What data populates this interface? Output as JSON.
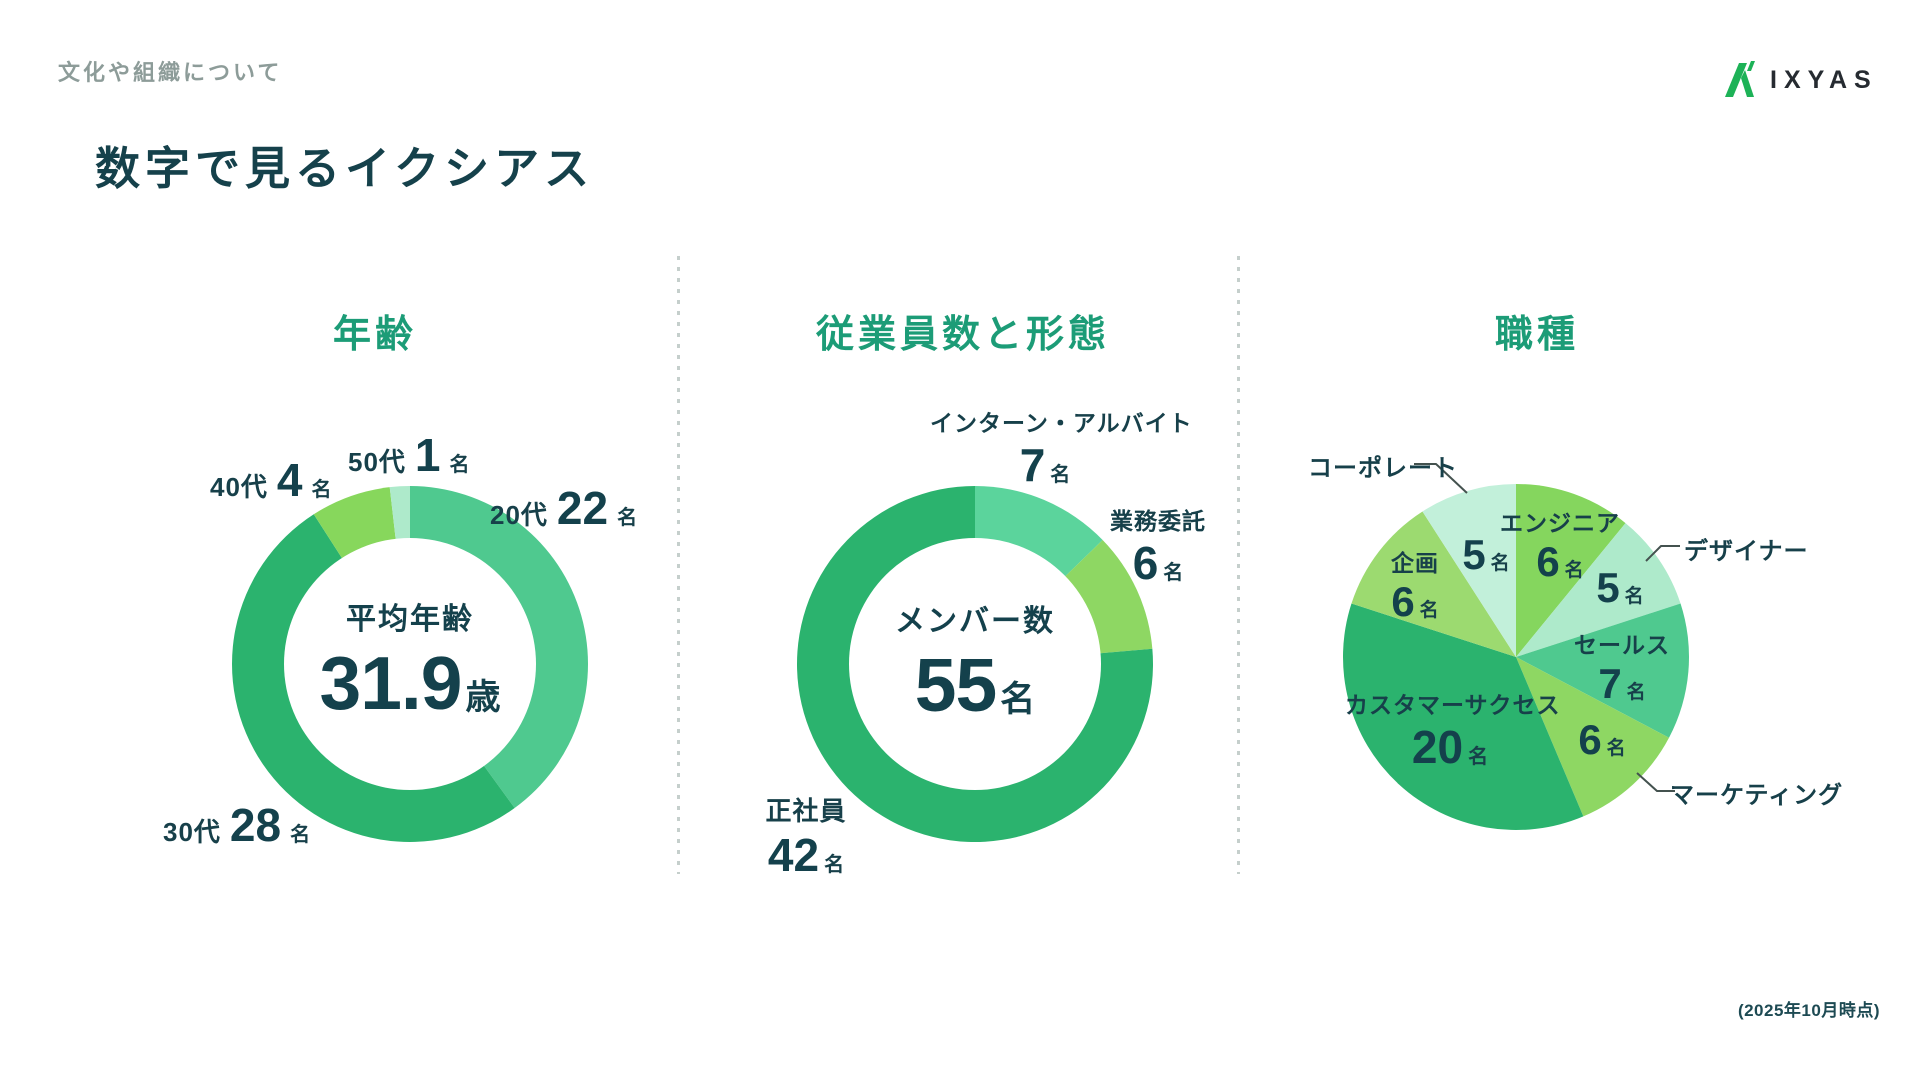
{
  "header": {
    "eyebrow": "文化や組織について",
    "title": "数字で見るイクシアス",
    "logo_text": "IXYAS"
  },
  "footer": {
    "note": "(2025年10月時点)"
  },
  "colors": {
    "accent_title_teal": "#1c9c77",
    "text_dark_teal": "#14414c",
    "eyebrow_gray": "#8d9c99",
    "logo_green": "#1db257",
    "divider_gray": "#c5cfcc"
  },
  "chart_data": [
    {
      "type": "donut",
      "title": "年齢",
      "legend_position": "around-slices",
      "center": {
        "label": "平均年齢",
        "value": "31.9",
        "unit": "歳"
      },
      "slices": [
        {
          "label": "20代",
          "value": 22,
          "unit": "名",
          "color": "#4fc98f"
        },
        {
          "label": "30代",
          "value": 28,
          "unit": "名",
          "color": "#2bb36e"
        },
        {
          "label": "40代",
          "value": 4,
          "unit": "名",
          "color": "#87d75c"
        },
        {
          "label": "50代",
          "value": 1,
          "unit": "名",
          "color": "#aeeacb"
        }
      ]
    },
    {
      "type": "donut",
      "title": "従業員数と形態",
      "legend_position": "around-slices",
      "center": {
        "label": "メンバー数",
        "value": "55",
        "unit": "名"
      },
      "slices": [
        {
          "label": "インターン・アルバイト",
          "value": 7,
          "unit": "名",
          "color": "#5bd49c"
        },
        {
          "label": "業務委託",
          "value": 6,
          "unit": "名",
          "color": "#8ed763"
        },
        {
          "label": "正社員",
          "value": 42,
          "unit": "名",
          "color": "#2bb36e"
        }
      ]
    },
    {
      "type": "pie",
      "title": "職種",
      "legend_position": "around-slices",
      "slices": [
        {
          "label": "エンジニア",
          "value": 6,
          "unit": "名",
          "color": "#85d65e"
        },
        {
          "label": "デザイナー",
          "value": 5,
          "unit": "名",
          "color": "#aeeacb"
        },
        {
          "label": "セールス",
          "value": 7,
          "unit": "名",
          "color": "#4fc98f"
        },
        {
          "label": "マーケティング",
          "value": 6,
          "unit": "名",
          "color": "#8ed763"
        },
        {
          "label": "カスタマーサクセス",
          "value": 20,
          "unit": "名",
          "color": "#2bb36e"
        },
        {
          "label": "企画",
          "value": 6,
          "unit": "名",
          "color": "#9cda70"
        },
        {
          "label": "コーポレート",
          "value": 5,
          "unit": "名",
          "color": "#c2f0da"
        }
      ]
    }
  ]
}
